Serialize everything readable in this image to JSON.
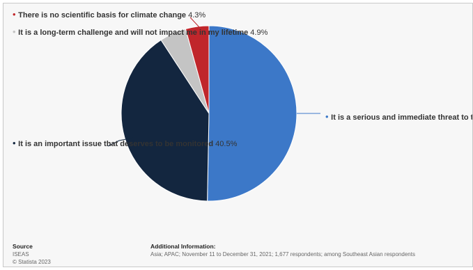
{
  "chart_data": {
    "type": "pie",
    "slices": [
      {
        "label": "It is a serious and immediate threat to th",
        "value": 50.3,
        "value_label": "",
        "color": "#3c78c8"
      },
      {
        "label": "It is an important issue that deserves to be monitored",
        "value": 40.5,
        "value_label": "40.5%",
        "color": "#13263f"
      },
      {
        "label": "It is a long-term challenge and will not impact me in my lifetime",
        "value": 4.9,
        "value_label": "4.9%",
        "color": "#c4c4c4"
      },
      {
        "label": "There is no scientific basis for climate change",
        "value": 4.3,
        "value_label": "4.3%",
        "color": "#c0262b"
      }
    ]
  },
  "footer": {
    "source_title": "Source",
    "source_name": "ISEAS",
    "copyright": "© Statista 2023",
    "additional_title": "Additional Information:",
    "additional_text": "Asia; APAC; November 11 to December 31, 2021; 1,677 respondents; among Southeast Asian respondents"
  }
}
